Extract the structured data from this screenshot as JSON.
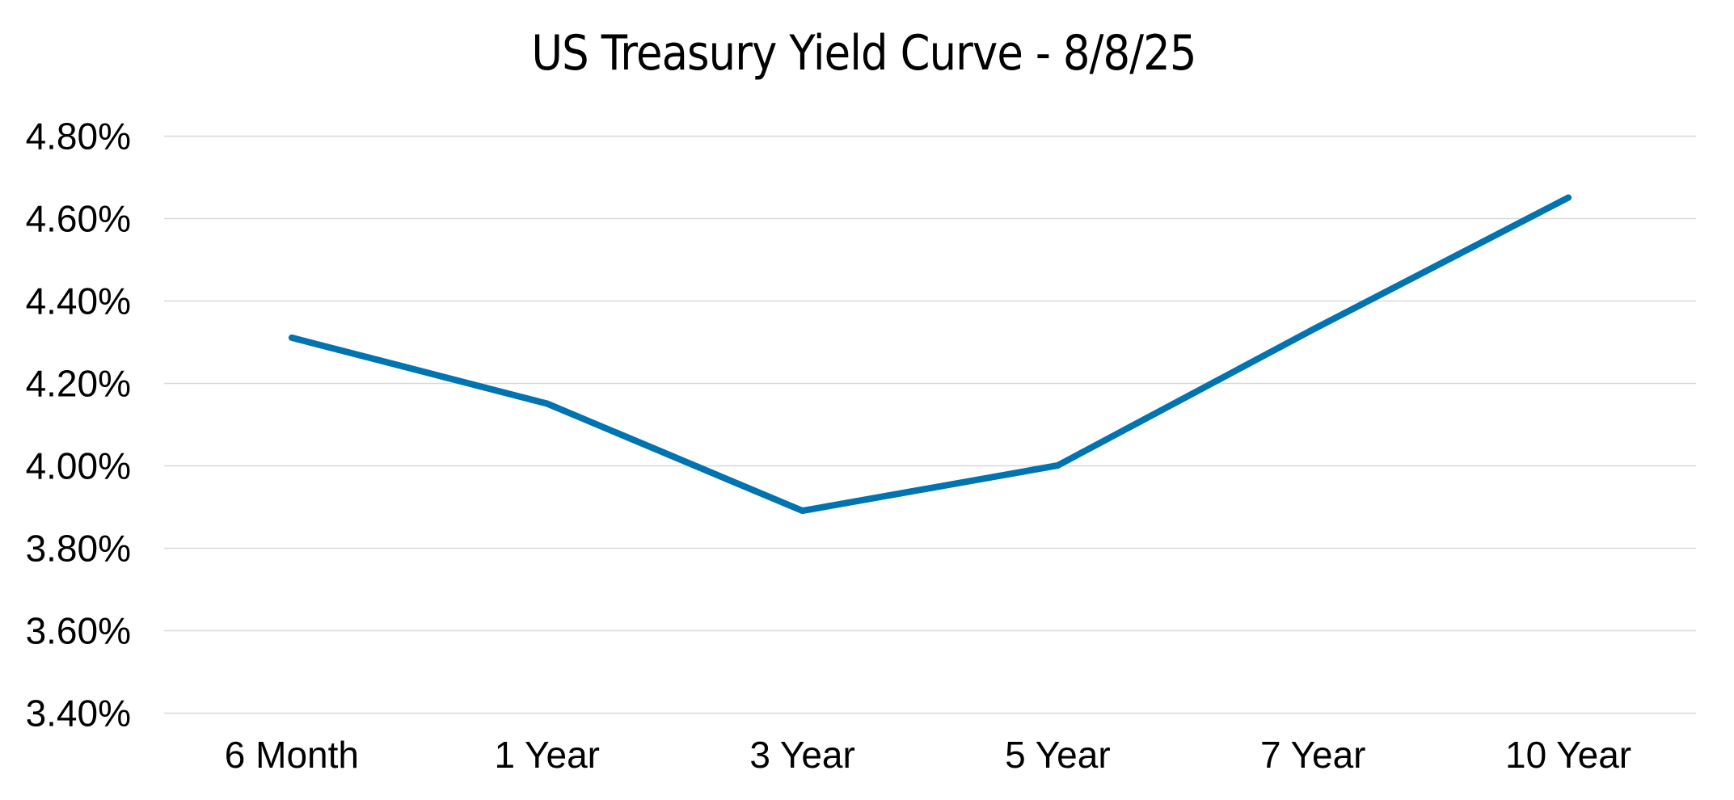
{
  "chart_data": {
    "type": "line",
    "title": "US Treasury Yield Curve - 8/8/25",
    "xlabel": "",
    "ylabel": "",
    "categories": [
      "6 Month",
      "1 Year",
      "3 Year",
      "5 Year",
      "7 Year",
      "10 Year"
    ],
    "series": [
      {
        "name": "US Treasury Yield",
        "values": [
          4.31,
          4.15,
          3.89,
          4.0,
          4.33,
          4.65
        ],
        "color": "#0073B1"
      }
    ],
    "ylim": [
      3.4,
      4.8
    ],
    "yticks": [
      3.4,
      3.6,
      3.8,
      4.0,
      4.2,
      4.4,
      4.6,
      4.8
    ],
    "ytick_labels": [
      "3.40%",
      "3.60%",
      "3.80%",
      "4.00%",
      "4.20%",
      "4.40%",
      "4.60%",
      "4.80%"
    ],
    "grid": "horizontal",
    "legend": "none"
  },
  "colors": {
    "line": "#0073B1",
    "grid": "#D9D9D9",
    "text": "#000000"
  }
}
